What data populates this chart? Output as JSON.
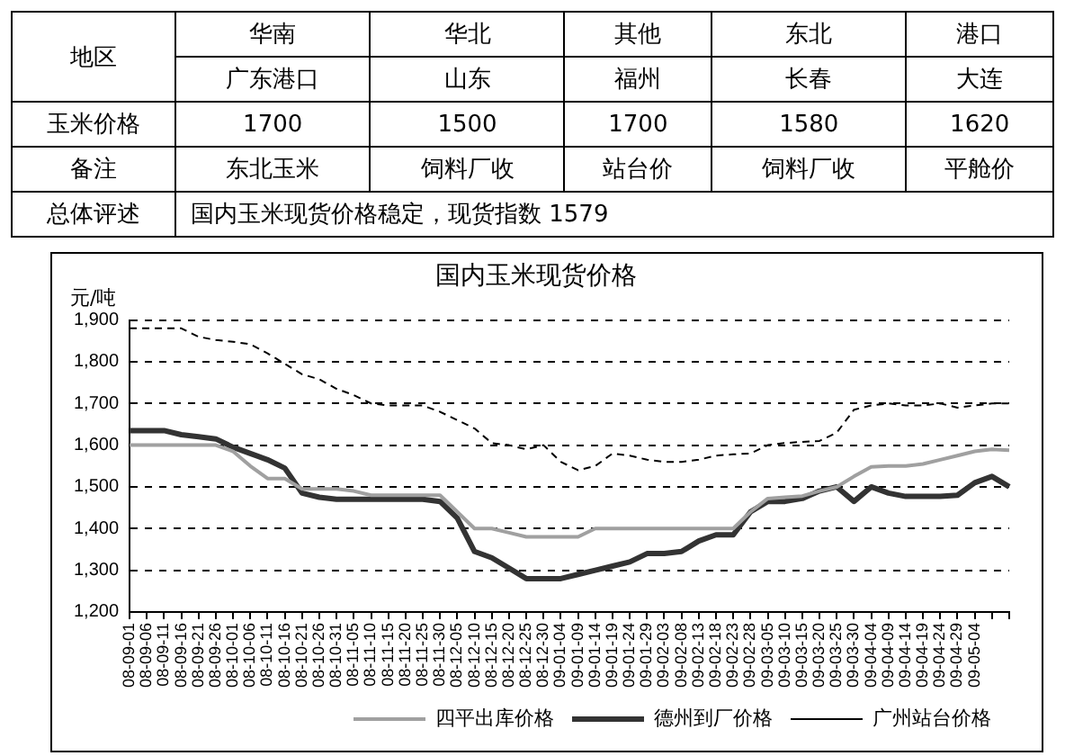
{
  "chart_data": [
    {
      "type": "other",
      "categories": [
        "华南",
        "华北",
        "其他",
        "东北",
        "港口"
      ],
      "y_categories": [
        "地区",
        "玉米价格",
        "备注",
        "总体评述"
      ],
      "cell_labels": [
        [
          "广东港口",
          "山东",
          "福州",
          "长春",
          "大连"
        ],
        [
          "1700",
          "1500",
          "1700",
          "1580",
          "1620"
        ],
        [
          "东北玉米",
          "饲料厂收",
          "站台价",
          "饲料厂收",
          "平舱价"
        ],
        [
          "国内玉米现货价格稳定，现货指数 1579",
          null,
          null,
          null,
          null
        ]
      ]
    },
    {
      "type": "line",
      "title": "国内玉米现货价格",
      "ylabel": "元/吨",
      "marker": "none",
      "grid": "y",
      "legend": "bottom",
      "categories": [
        "08-09-01",
        "08-09-06",
        "08-09-11",
        "08-09-16",
        "08-09-21",
        "08-09-26",
        "08-10-01",
        "08-10-06",
        "08-10-11",
        "08-10-16",
        "08-10-21",
        "08-10-26",
        "08-10-31",
        "08-11-05",
        "08-11-10",
        "08-11-15",
        "08-11-20",
        "08-11-25",
        "08-11-30",
        "08-12-05",
        "08-12-10",
        "08-12-15",
        "08-12-20",
        "08-12-25",
        "08-12-30",
        "09-01-04",
        "09-01-09",
        "09-01-14",
        "09-01-19",
        "09-01-24",
        "09-01-29",
        "09-02-03",
        "09-02-08",
        "09-02-13",
        "09-02-18",
        "09-02-23",
        "09-02-28",
        "09-03-05",
        "09-03-10",
        "09-03-15",
        "09-03-20",
        "09-03-25",
        "09-03-30",
        "09-04-04",
        "09-04-09",
        "09-04-14",
        "09-04-19",
        "09-04-24",
        "09-04-29",
        "09-05-04",
        null,
        null
      ],
      "ylim": [
        1200,
        1900
      ],
      "yticks": [
        {
          "value": 1200,
          "label": "1,200"
        },
        {
          "value": 1300,
          "label": "1,300"
        },
        {
          "value": 1400,
          "label": "1,400"
        },
        {
          "value": 1500,
          "label": "1,500"
        },
        {
          "value": 1600,
          "label": "1,600"
        },
        {
          "value": 1700,
          "label": "1,700"
        },
        {
          "value": 1800,
          "label": "1,800"
        },
        {
          "value": 1900,
          "label": "1,900"
        }
      ],
      "series": [
        {
          "name": "四平出库价格",
          "color": "#a0a0a0",
          "line_style": "solid",
          "values": [
            1600,
            1600,
            1600,
            1600,
            1600,
            1600,
            1585,
            1550,
            1520,
            1520,
            1495,
            1495,
            1495,
            1490,
            1480,
            1480,
            1480,
            1480,
            1480,
            1440,
            1400,
            1400,
            1390,
            1380,
            1380,
            1380,
            1380,
            1400,
            1400,
            1400,
            1400,
            1400,
            1400,
            1400,
            1400,
            1400,
            1440,
            1472,
            1475,
            1478,
            1490,
            1500,
            1525,
            1548,
            1550,
            1550,
            1555,
            1565,
            1575,
            1585,
            1590,
            1588
          ]
        },
        {
          "name": "德州到厂价格",
          "color": "#333333",
          "line_style": "solid",
          "values": [
            1635,
            1635,
            1635,
            1625,
            1620,
            1615,
            1595,
            1580,
            1565,
            1545,
            1485,
            1475,
            1470,
            1470,
            1470,
            1470,
            1470,
            1470,
            1465,
            1425,
            1345,
            1330,
            1305,
            1280,
            1280,
            1280,
            1290,
            1300,
            1310,
            1320,
            1340,
            1340,
            1345,
            1370,
            1385,
            1385,
            1440,
            1465,
            1465,
            1472,
            1490,
            1500,
            1465,
            1500,
            1485,
            1477,
            1477,
            1477,
            1480,
            1510,
            1525,
            1500
          ]
        },
        {
          "name": "广州站台价格",
          "color": "#000000",
          "line_style": "dashed",
          "values": [
            1880,
            1880,
            1880,
            1880,
            1860,
            1852,
            1848,
            1842,
            1820,
            1795,
            1770,
            1758,
            1735,
            1720,
            1700,
            1695,
            1695,
            1695,
            1680,
            1660,
            1640,
            1605,
            1600,
            1590,
            1600,
            1560,
            1540,
            1550,
            1580,
            1575,
            1565,
            1560,
            1560,
            1565,
            1575,
            1578,
            1580,
            1600,
            1605,
            1608,
            1610,
            1630,
            1685,
            1695,
            1700,
            1695,
            1695,
            1700,
            1690,
            1695,
            1700,
            1700
          ]
        }
      ]
    }
  ]
}
